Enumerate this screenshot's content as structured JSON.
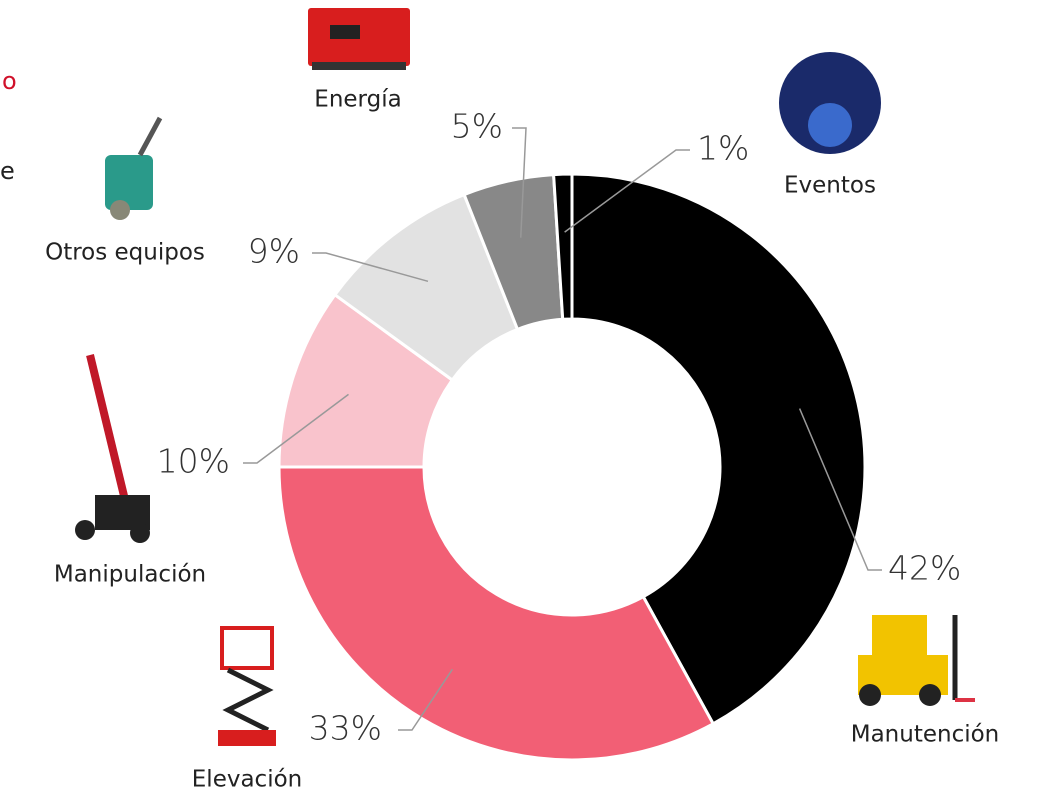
{
  "chart_data": {
    "type": "donut",
    "categories": [
      "Manutención",
      "Elevación",
      "Manipulación",
      "Otros equipos",
      "Energía",
      "Eventos"
    ],
    "values": [
      42,
      33,
      10,
      9,
      5,
      1
    ],
    "value_labels": [
      "42%",
      "33%",
      "10%",
      "9%",
      "5%",
      "1%"
    ],
    "colors": [
      "#000000",
      "#f25f75",
      "#f9c3cc",
      "#e2e2e2",
      "#888888",
      "#000000"
    ],
    "side_text": [
      "o",
      "e"
    ]
  }
}
